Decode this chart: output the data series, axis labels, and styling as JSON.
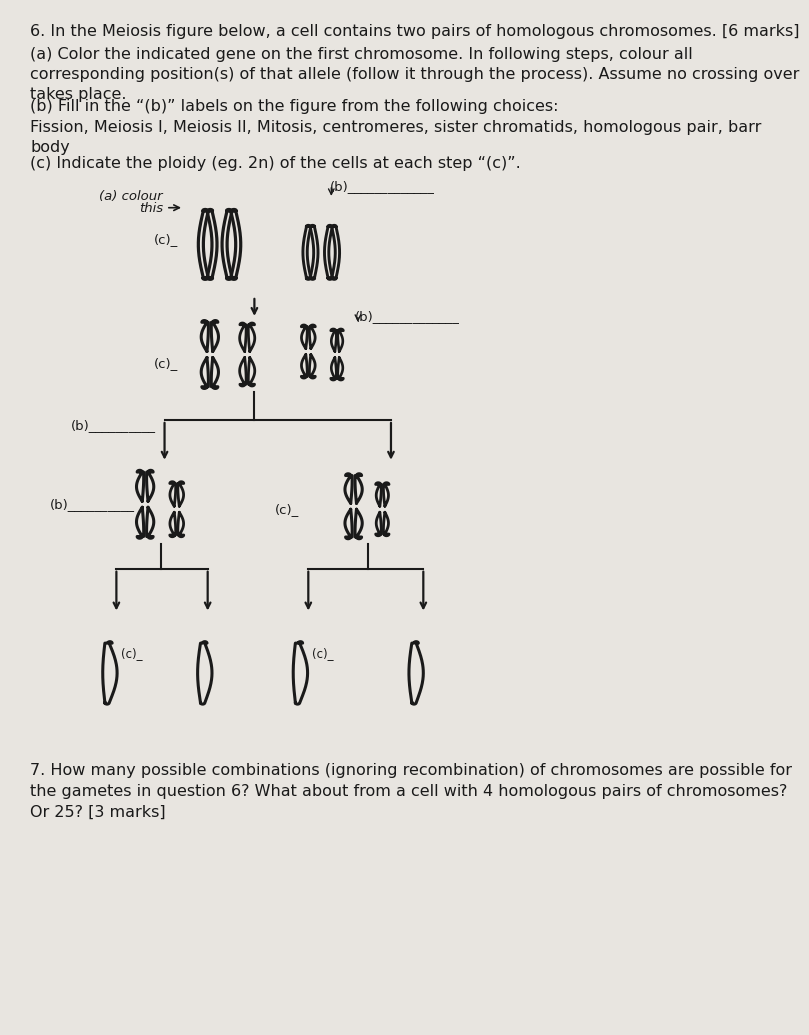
{
  "bg_color": "#e8e5e0",
  "text_color": "#1a1a1a",
  "chrom_color": "#1a1a1a",
  "title_q6": "6. In the Meiosis figure below, a cell contains two pairs of homologous chromosomes. [6 marks]",
  "text_a": "(a) Color the indicated gene on the first chromosome. In following steps, colour all\ncorresponding position(s) of that allele (follow it through the process). Assume no crossing over\ntakes place.",
  "text_b": "(b) Fill in the “(b)” labels on the figure from the following choices:\nFission, Meiosis I, Meiosis II, Mitosis, centromeres, sister chromatids, homologous pair, barr\nbody",
  "text_c": "(c) Indicate the ploidy (eg. 2n) of the cells at each step “(c)”.",
  "title_q7": "7. How many possible combinations (ignoring recombination) of chromosomes are possible for\nthe gametes in question 6? What about from a cell with 4 homologous pairs of chromosomes?\nOr 25? [3 marks]",
  "font_size": 11.5,
  "font_size_small": 9.5,
  "lw_chrom": 2.2,
  "lw_arrow": 1.6
}
